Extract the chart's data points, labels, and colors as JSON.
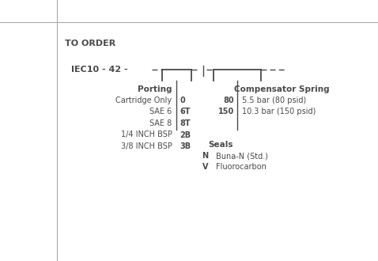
{
  "bg_color": "#ffffff",
  "border_color": "#aaaaaa",
  "text_color": "#4a4a4a",
  "title": "TO ORDER",
  "prefix": "IEC10 - 42 -",
  "porting_header": "Porting",
  "porting_items": [
    [
      "Cartridge Only",
      "0"
    ],
    [
      "SAE 6",
      "6T"
    ],
    [
      "SAE 8",
      "8T"
    ],
    [
      "1/4 INCH BSP",
      "2B"
    ],
    [
      "3/8 INCH BSP",
      "3B"
    ]
  ],
  "seals_header": "Seals",
  "seals_items": [
    [
      "N",
      "Buna-N (Std.)"
    ],
    [
      "V",
      "Fluorocarbon"
    ]
  ],
  "spring_header": "Compensator Spring",
  "spring_items": [
    [
      "80",
      "5.5 bar (80 psid)"
    ],
    [
      "150",
      "10.3 bar (150 psid)"
    ]
  ]
}
